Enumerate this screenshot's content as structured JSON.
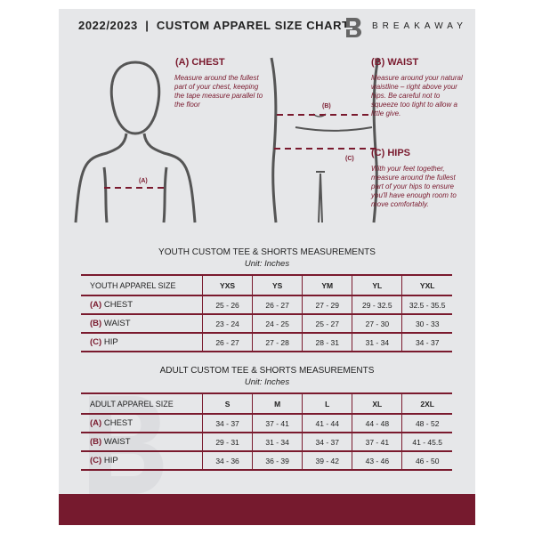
{
  "header": {
    "title": "2022/2023  |  CUSTOM APPAREL SIZE CHART",
    "brand": "BREAKAWAY"
  },
  "guides": {
    "chest": {
      "label": "(A) CHEST",
      "desc": "Measure around the fullest part of your chest, keeping the tape measure parallel to the floor",
      "marker": "(A)"
    },
    "waist": {
      "label": "(B) WAIST",
      "desc": "Measure around your natural waistline – right above your hips. Be careful not to squeeze too tight to allow a little give.",
      "marker": "(B)"
    },
    "hips": {
      "label": "(C) HIPS",
      "desc": "With your feet together, measure around the fullest part of your hips to ensure you'll have enough room to move comfortably.",
      "marker": "(C)"
    }
  },
  "youth": {
    "title": "YOUTH CUSTOM TEE & SHORTS MEASUREMENTS",
    "unit": "Unit: Inches",
    "header": "YOUTH APPAREL SIZE",
    "sizes": [
      "YXS",
      "YS",
      "YM",
      "YL",
      "YXL"
    ],
    "rows": [
      {
        "letter": "(A)",
        "name": "CHEST",
        "values": [
          "25 - 26",
          "26 - 27",
          "27 - 29",
          "29 - 32.5",
          "32.5 - 35.5"
        ]
      },
      {
        "letter": "(B)",
        "name": "WAIST",
        "values": [
          "23 - 24",
          "24 - 25",
          "25 - 27",
          "27 - 30",
          "30 - 33"
        ]
      },
      {
        "letter": "(C)",
        "name": "HIP",
        "values": [
          "26 - 27",
          "27 - 28",
          "28 - 31",
          "31 - 34",
          "34 - 37"
        ]
      }
    ]
  },
  "adult": {
    "title": "ADULT CUSTOM TEE & SHORTS MEASUREMENTS",
    "unit": "Unit: Inches",
    "header": "ADULT APPAREL SIZE",
    "sizes": [
      "S",
      "M",
      "L",
      "XL",
      "2XL"
    ],
    "rows": [
      {
        "letter": "(A)",
        "name": "CHEST",
        "values": [
          "34 - 37",
          "37 - 41",
          "41 - 44",
          "44 - 48",
          "48 - 52"
        ]
      },
      {
        "letter": "(B)",
        "name": "WAIST",
        "values": [
          "29 - 31",
          "31 - 34",
          "34 - 37",
          "37 - 41",
          "41 - 45.5"
        ]
      },
      {
        "letter": "(C)",
        "name": "HIP",
        "values": [
          "34 - 36",
          "36 - 39",
          "39 - 42",
          "43 - 46",
          "46 - 50"
        ]
      }
    ]
  },
  "colors": {
    "accent": "#761a2e",
    "panel": "#e6e7e9"
  }
}
